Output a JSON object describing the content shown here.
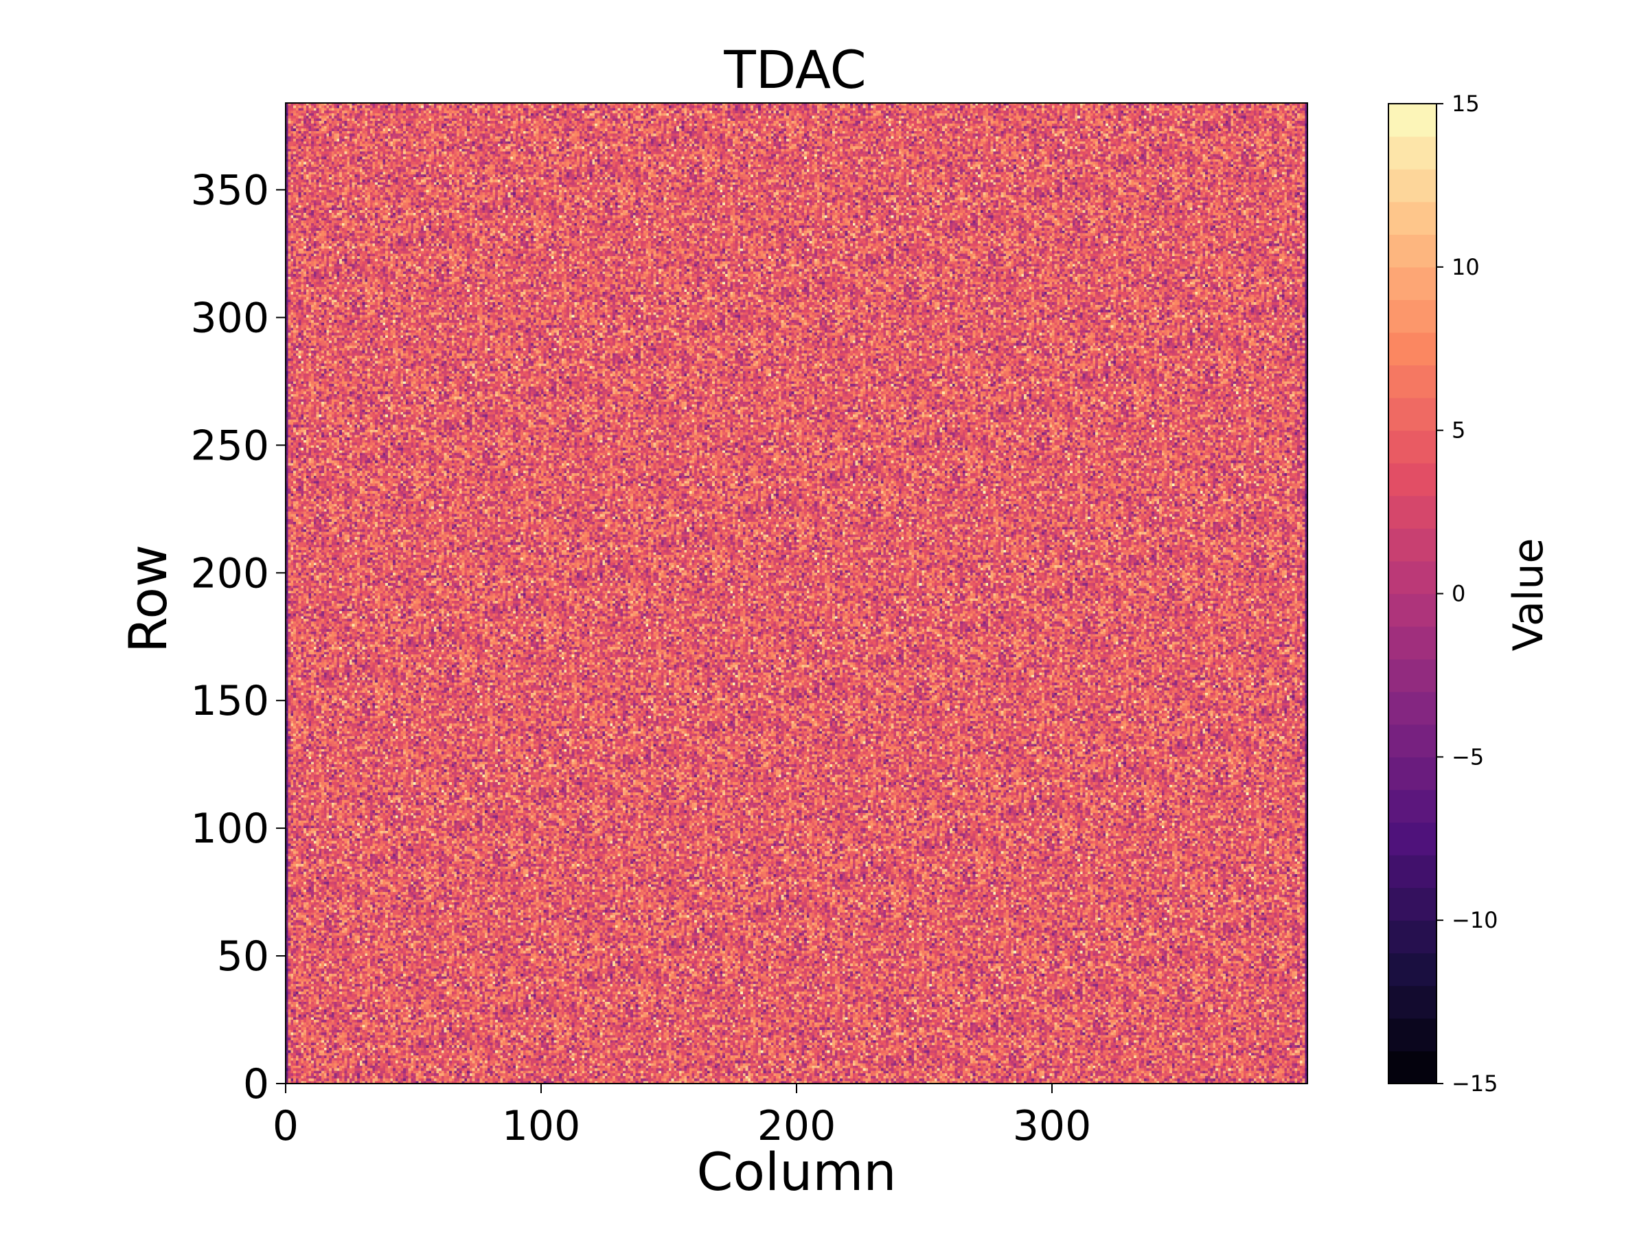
{
  "chart_data": {
    "type": "heatmap",
    "title": "TDAC",
    "xlabel": "Column",
    "ylabel": "Row",
    "colorbar_label": "Value",
    "colormap": "magma",
    "colormap_stops": [
      "#000004",
      "#1c1044",
      "#4f127b",
      "#812581",
      "#b5367a",
      "#e55064",
      "#fb8761",
      "#fec287",
      "#fcfdbf"
    ],
    "n_columns": 400,
    "n_rows": 384,
    "xlim": [
      0,
      400
    ],
    "ylim": [
      0,
      384
    ],
    "vlim": [
      -15,
      15
    ],
    "color_levels": 30,
    "value_mean": 4,
    "value_spread": 3.5,
    "edge_columns_value": -6,
    "x_ticks": [
      {
        "value": 0,
        "label": "0"
      },
      {
        "value": 100,
        "label": "100"
      },
      {
        "value": 200,
        "label": "200"
      },
      {
        "value": 300,
        "label": "300"
      }
    ],
    "y_ticks": [
      {
        "value": 0,
        "label": "0"
      },
      {
        "value": 50,
        "label": "50"
      },
      {
        "value": 100,
        "label": "100"
      },
      {
        "value": 150,
        "label": "150"
      },
      {
        "value": 200,
        "label": "200"
      },
      {
        "value": 250,
        "label": "250"
      },
      {
        "value": 300,
        "label": "300"
      },
      {
        "value": 350,
        "label": "350"
      }
    ],
    "colorbar_ticks": [
      {
        "value": 15,
        "label": "15"
      },
      {
        "value": 10,
        "label": "10"
      },
      {
        "value": 5,
        "label": "5"
      },
      {
        "value": 0,
        "label": "0"
      },
      {
        "value": -5,
        "label": "−5"
      },
      {
        "value": -10,
        "label": "−10"
      },
      {
        "value": -15,
        "label": "−15"
      }
    ]
  }
}
